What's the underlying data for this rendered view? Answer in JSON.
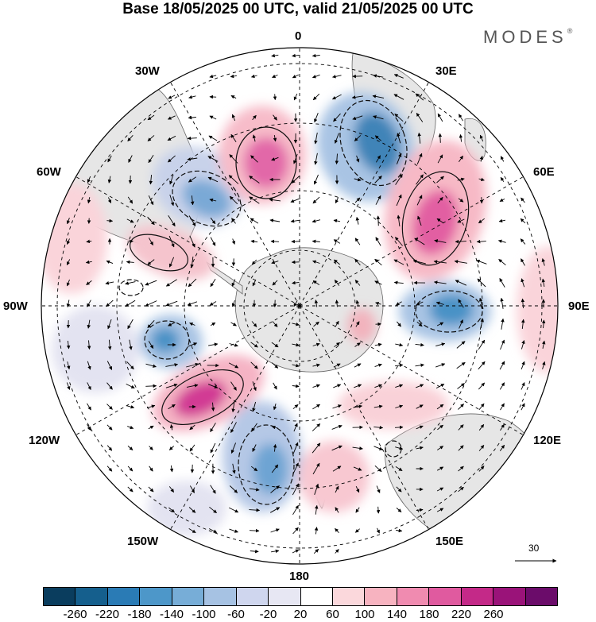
{
  "title": "Base 18/05/2025 00 UTC, valid 21/05/2025 00 UTC",
  "brand": {
    "name": "MODES",
    "mark": "®"
  },
  "longitude_labels": {
    "lon_0": "0",
    "lon_30e": "30E",
    "lon_60e": "60E",
    "lon_90e": "90E",
    "lon_120e": "120E",
    "lon_150e": "150E",
    "lon_180": "180",
    "lon_150w": "150W",
    "lon_120w": "120W",
    "lon_90w": "90W",
    "lon_60w": "60W",
    "lon_30w": "30W"
  },
  "reference_vector": {
    "label": "30"
  },
  "colorbar": {
    "colors": [
      "#0a3d5e",
      "#155f8d",
      "#2a7bb5",
      "#4d97c9",
      "#77add7",
      "#a6c2e3",
      "#cfd6ee",
      "#e7e7f3",
      "#ffffff",
      "#fbd8dc",
      "#f7b3c0",
      "#f08bb0",
      "#e05a9f",
      "#c42988",
      "#9a1379",
      "#6b0c6a"
    ],
    "ticks": [
      "-260",
      "-220",
      "-180",
      "-140",
      "-100",
      "-60",
      "-20",
      "20",
      "60",
      "100",
      "140",
      "180",
      "220",
      "260"
    ]
  },
  "anomaly_colors": {
    "negative_light": "#dedfee",
    "negative_mid": "#a6c2e3",
    "negative_strong": "#4d97c9",
    "negative_core": "#2a6f9e",
    "positive_light": "#fbdde1",
    "positive_mid": "#f7b3c0",
    "positive_strong": "#f08bb0",
    "positive_core": "#c42988",
    "land": "#e8e8e8"
  }
}
